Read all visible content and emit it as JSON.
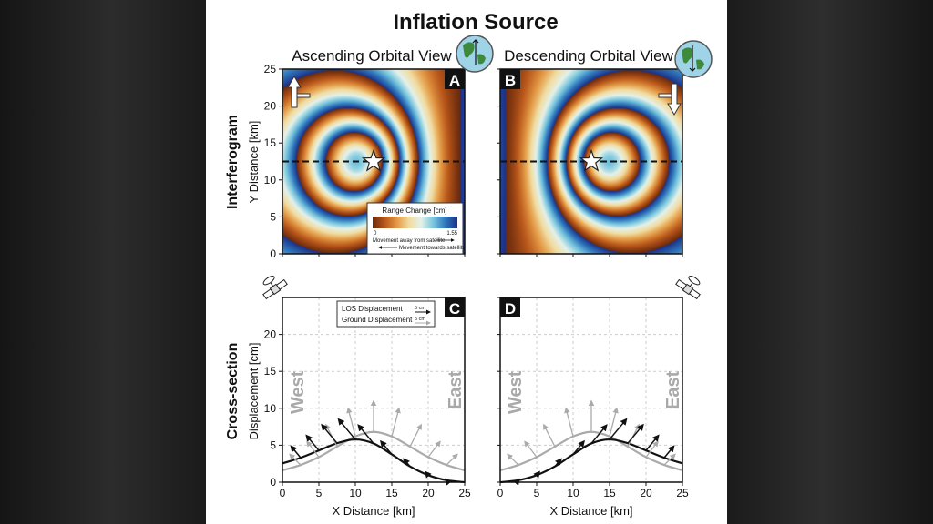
{
  "title": "Inflation Source",
  "row_labels": {
    "interferogram": "Interferogram",
    "cross_section": "Cross-section"
  },
  "panels": {
    "A": {
      "label": "A",
      "heading": "Ascending Orbital View"
    },
    "B": {
      "label": "B",
      "heading": "Descending Orbital View"
    },
    "C": {
      "label": "C"
    },
    "D": {
      "label": "D"
    }
  },
  "axes": {
    "interferogram_ylabel": "Y Distance [km]",
    "cross_section_ylabel": "Displacement [cm]",
    "xlabel": "X Distance [km]",
    "interferogram_yticks": [
      "0",
      "5",
      "10",
      "15",
      "20",
      "25"
    ],
    "cross_section_yticks": [
      "0",
      "5",
      "10",
      "15",
      "20"
    ],
    "xticks": [
      "0",
      "5",
      "10",
      "15",
      "20",
      "25"
    ]
  },
  "colorbar": {
    "title": "Range Change [cm]",
    "min_label": "0",
    "max_label": "1.55",
    "away": "Movement away from satellite",
    "towards": "Movement towards satellite",
    "colors": [
      "#6b2a0c",
      "#b8561a",
      "#e39a45",
      "#f1dca0",
      "#e4f1ea",
      "#78c6de",
      "#2f78bd",
      "#1c2f86"
    ]
  },
  "section_legend": {
    "los_label": "LOS Displacement",
    "ground_label": "Ground Displacement",
    "los_scale": "5 cm",
    "ground_scale": "5 cm"
  },
  "directions": {
    "west": "West",
    "east": "East"
  },
  "icons": [
    "globe-icon",
    "satellite-icon",
    "flight-direction-arrow-icon",
    "star-icon"
  ],
  "chart_data": [
    {
      "type": "heatmap",
      "panel": "A",
      "description_of_values": "wrapped range change",
      "x_range_km": [
        0,
        25
      ],
      "y_range_km": [
        0,
        25
      ],
      "source_location_km": [
        12.5,
        12.5
      ],
      "wrap_cm": 1.55,
      "profile_line_y_km": 12.5
    },
    {
      "type": "heatmap",
      "panel": "B",
      "x_range_km": [
        0,
        25
      ],
      "y_range_km": [
        0,
        25
      ],
      "source_location_km": [
        12.5,
        12.5
      ],
      "wrap_cm": 1.55,
      "profile_line_y_km": 12.5
    },
    {
      "type": "line",
      "panel": "C",
      "x": [
        0,
        2.5,
        5,
        7.5,
        10,
        12.5,
        15,
        17.5,
        20,
        22.5,
        25
      ],
      "ylim": [
        0,
        25
      ],
      "xlim": [
        0,
        25
      ],
      "grid": true,
      "series": [
        {
          "name": "Ground Displacement",
          "color": "#aaaaaa",
          "vertical": [
            1.6,
            2.33,
            3.4,
            4.81,
            6.19,
            6.8,
            6.19,
            4.81,
            3.4,
            2.33,
            1.6
          ],
          "horizontal": [
            -2.04,
            -2.38,
            -2.61,
            -2.45,
            -1.58,
            0,
            1.58,
            2.45,
            2.61,
            2.38,
            2.04
          ]
        },
        {
          "name": "LOS Displacement",
          "color": "#111111",
          "values": [
            2.54,
            3.31,
            4.29,
            5.27,
            5.78,
            5.24,
            3.76,
            2.13,
            0.95,
            0.27,
            0.0
          ]
        }
      ]
    },
    {
      "type": "line",
      "panel": "D",
      "x": [
        0,
        2.5,
        5,
        7.5,
        10,
        12.5,
        15,
        17.5,
        20,
        22.5,
        25
      ],
      "ylim": [
        0,
        25
      ],
      "xlim": [
        0,
        25
      ],
      "grid": true,
      "series": [
        {
          "name": "Ground Displacement",
          "color": "#aaaaaa",
          "vertical": [
            1.6,
            2.33,
            3.4,
            4.81,
            6.19,
            6.8,
            6.19,
            4.81,
            3.4,
            2.33,
            1.6
          ],
          "horizontal": [
            -2.04,
            -2.38,
            -2.61,
            -2.45,
            -1.58,
            0,
            1.58,
            2.45,
            2.61,
            2.38,
            2.04
          ]
        },
        {
          "name": "LOS Displacement",
          "color": "#111111",
          "values": [
            0.0,
            0.27,
            0.95,
            2.13,
            3.76,
            5.24,
            5.78,
            5.27,
            4.29,
            3.31,
            2.54
          ]
        }
      ]
    }
  ]
}
